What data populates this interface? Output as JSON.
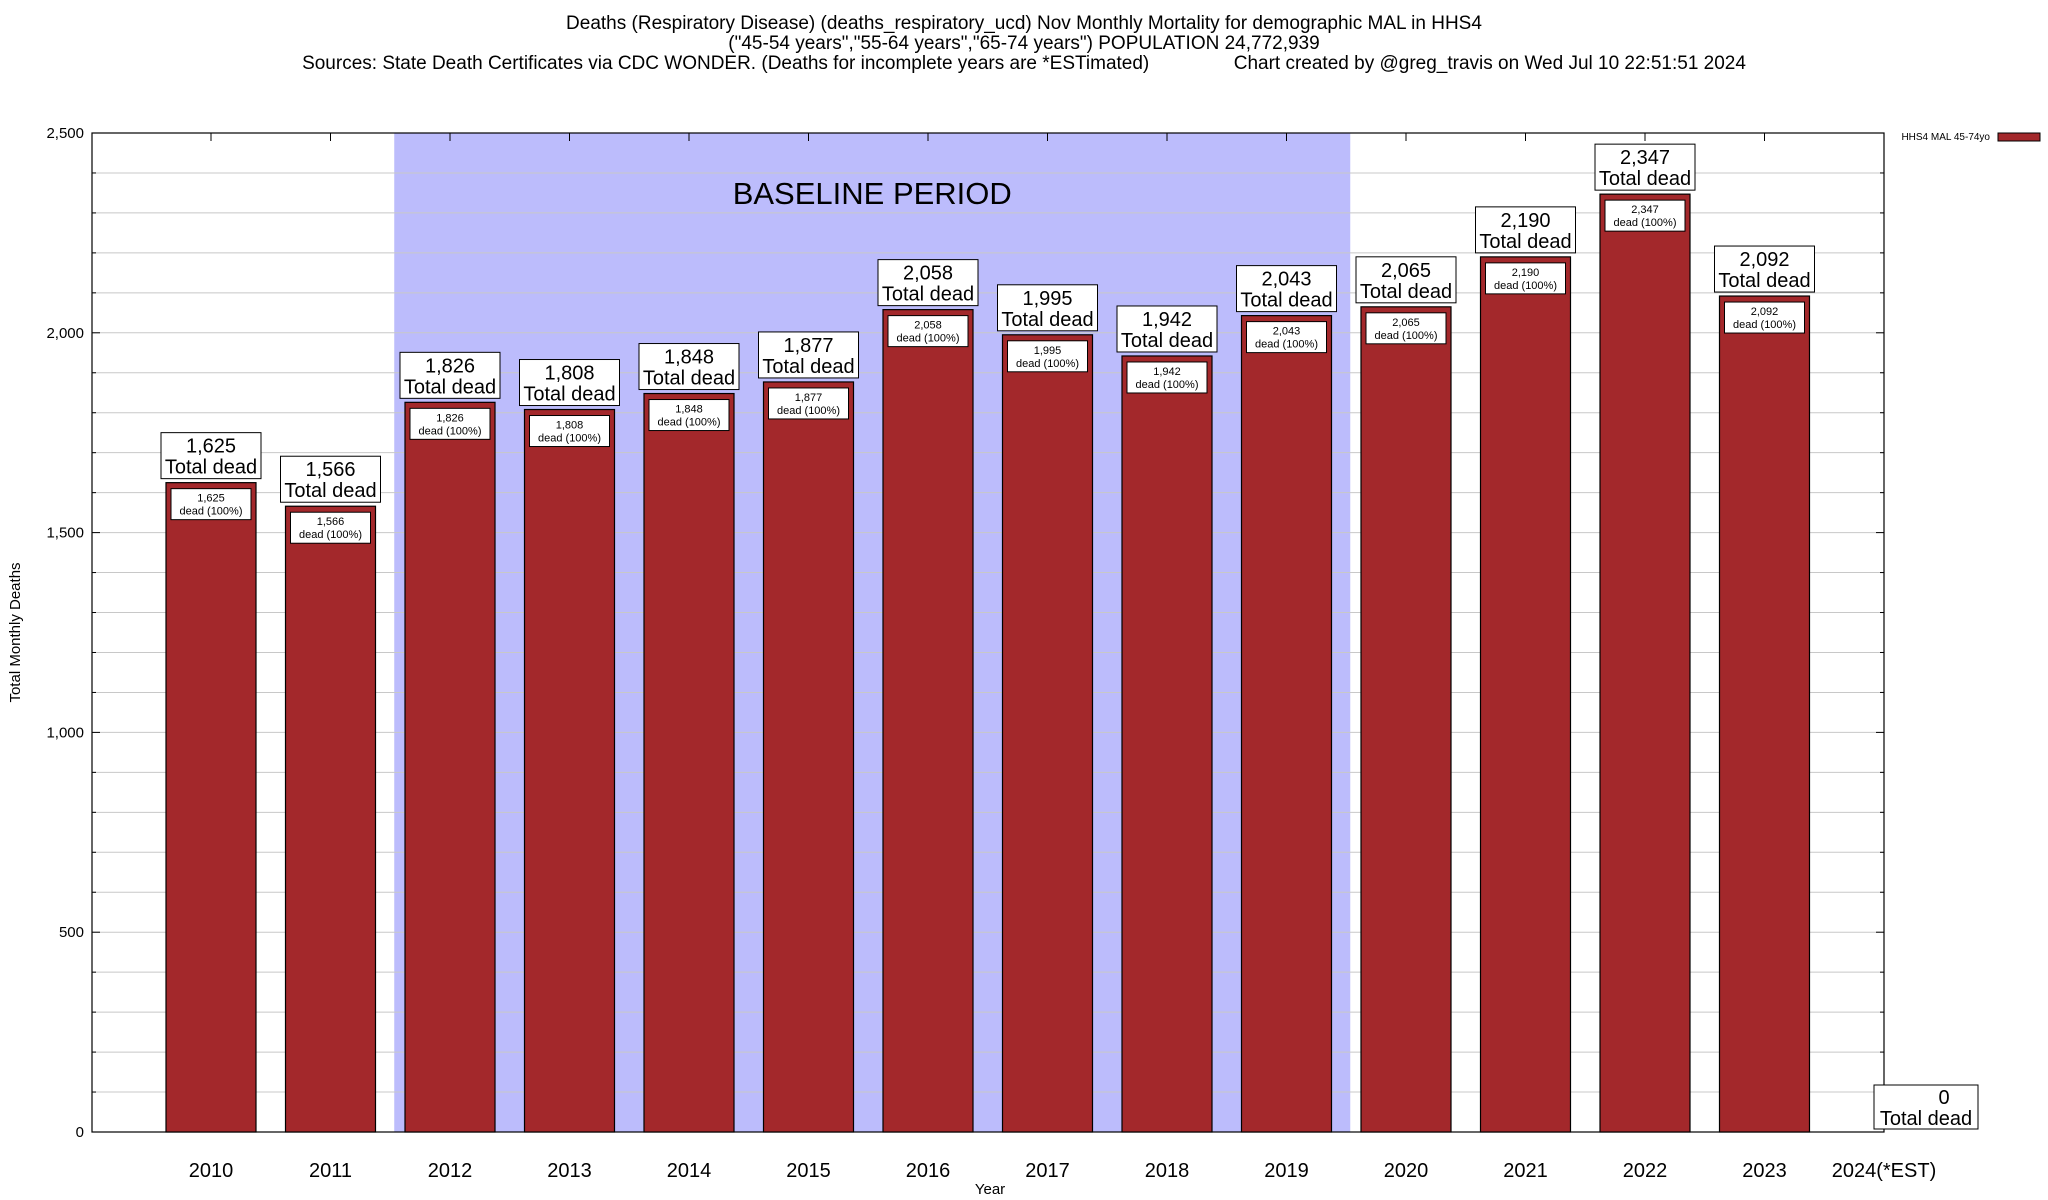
{
  "title": {
    "line1": "Deaths (Respiratory Disease) (deaths_respiratory_ucd) Nov Monthly Mortality for demographic MAL in HHS4",
    "line2": "(\"45-54 years\",\"55-64 years\",\"65-74 years\") POPULATION 24,772,939",
    "line3_left": "Sources: State Death Certificates via CDC WONDER. (Deaths for incomplete years are *ESTimated)",
    "line3_right": "Chart created by @greg_travis on Wed Jul 10 22:51:51 2024"
  },
  "colors": {
    "bar": "#a3282b",
    "baseline_shade": "#bcbcfc",
    "grid": "#c8c8c8"
  },
  "chart_data": {
    "type": "bar",
    "xlabel": "Year",
    "ylabel": "Total Monthly Deaths",
    "ylim": [
      0,
      2500
    ],
    "y_ticks": [
      {
        "value": 0,
        "label": "0"
      },
      {
        "value": 500,
        "label": "500"
      },
      {
        "value": 1000,
        "label": "1,000"
      },
      {
        "value": 1500,
        "label": "1,500"
      },
      {
        "value": 2000,
        "label": "2,000"
      },
      {
        "value": 2500,
        "label": "2,500"
      }
    ],
    "grid": true,
    "legend": {
      "position": "top-right",
      "entries": [
        "HHS4 MAL 45-74yo"
      ]
    },
    "baseline_period": {
      "label": "BASELINE PERIOD",
      "from": "2012",
      "to": "2019"
    },
    "categories": [
      "2010",
      "2011",
      "2012",
      "2013",
      "2014",
      "2015",
      "2016",
      "2017",
      "2018",
      "2019",
      "2020",
      "2021",
      "2022",
      "2023",
      "2024(*EST)"
    ],
    "series": [
      {
        "name": "HHS4 MAL 45-74yo",
        "values": [
          1625,
          1566,
          1826,
          1808,
          1848,
          1877,
          2058,
          1995,
          1942,
          2043,
          2065,
          2190,
          2347,
          2092,
          0
        ],
        "value_labels": [
          "1,625",
          "1,566",
          "1,826",
          "1,808",
          "1,848",
          "1,877",
          "2,058",
          "1,995",
          "1,942",
          "2,043",
          "2,065",
          "2,190",
          "2,347",
          "2,092",
          "0"
        ],
        "top_label_suffix": "Total dead",
        "inner_label_suffix": "dead (100%)"
      }
    ]
  }
}
